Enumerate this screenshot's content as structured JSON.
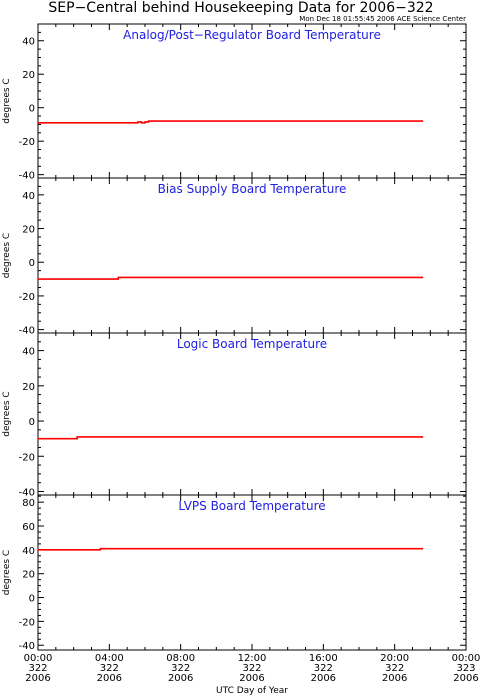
{
  "title": "SEP−Central behind Housekeeping Data for 2006−322",
  "timestamp": "Mon Dec 18 01:55:45 2006 ACE Science Center",
  "xlabel": "UTC Day of Year",
  "x_ticks": [
    {
      "hour": 0,
      "time": "00:00",
      "doy": "322",
      "year": "2006"
    },
    {
      "hour": 4,
      "time": "04:00",
      "doy": "322",
      "year": "2006"
    },
    {
      "hour": 8,
      "time": "08:00",
      "doy": "322",
      "year": "2006"
    },
    {
      "hour": 12,
      "time": "12:00",
      "doy": "322",
      "year": "2006"
    },
    {
      "hour": 16,
      "time": "16:00",
      "doy": "322",
      "year": "2006"
    },
    {
      "hour": 20,
      "time": "20:00",
      "doy": "322",
      "year": "2006"
    },
    {
      "hour": 24,
      "time": "00:00",
      "doy": "323",
      "year": "2006"
    }
  ],
  "colors": {
    "series": "#ff0000",
    "title": "#2020e0",
    "axes": "#000000"
  },
  "chart_data": [
    {
      "type": "line",
      "title": "Analog/Post−Regulator Board Temperature",
      "ylabel": "degrees C",
      "ylim": [
        -42,
        50
      ],
      "yticks": [
        40,
        20,
        0,
        -20,
        -40
      ],
      "xlim": [
        0,
        24
      ],
      "grid": false,
      "series": [
        {
          "x": [
            0,
            5.6,
            5.6,
            5.8,
            5.8,
            6.0,
            6.0,
            6.2,
            6.2,
            21.6
          ],
          "y": [
            -9,
            -9,
            -8.5,
            -8.5,
            -9,
            -9,
            -8.5,
            -8.5,
            -8,
            -8
          ]
        }
      ]
    },
    {
      "type": "line",
      "title": "Bias Supply Board Temperature",
      "ylabel": "degrees C",
      "ylim": [
        -42,
        50
      ],
      "yticks": [
        40,
        20,
        0,
        -20,
        -40
      ],
      "xlim": [
        0,
        24
      ],
      "grid": false,
      "series": [
        {
          "x": [
            0,
            4.5,
            4.5,
            21.6
          ],
          "y": [
            -10,
            -10,
            -9,
            -9
          ]
        }
      ]
    },
    {
      "type": "line",
      "title": "Logic Board Temperature",
      "ylabel": "degrees C",
      "ylim": [
        -42,
        50
      ],
      "yticks": [
        40,
        20,
        0,
        -20,
        -40
      ],
      "xlim": [
        0,
        24
      ],
      "grid": false,
      "series": [
        {
          "x": [
            0,
            2.2,
            2.2,
            21.6
          ],
          "y": [
            -10,
            -10,
            -9,
            -9
          ]
        }
      ]
    },
    {
      "type": "line",
      "title": "LVPS Board Temperature",
      "ylabel": "degrees C",
      "ylim": [
        -44,
        86
      ],
      "yticks": [
        80,
        60,
        40,
        20,
        0,
        -20,
        -40
      ],
      "xlim": [
        0,
        24
      ],
      "grid": false,
      "series": [
        {
          "x": [
            0,
            3.5,
            3.5,
            21.6
          ],
          "y": [
            40,
            40,
            41,
            41
          ]
        }
      ]
    }
  ]
}
